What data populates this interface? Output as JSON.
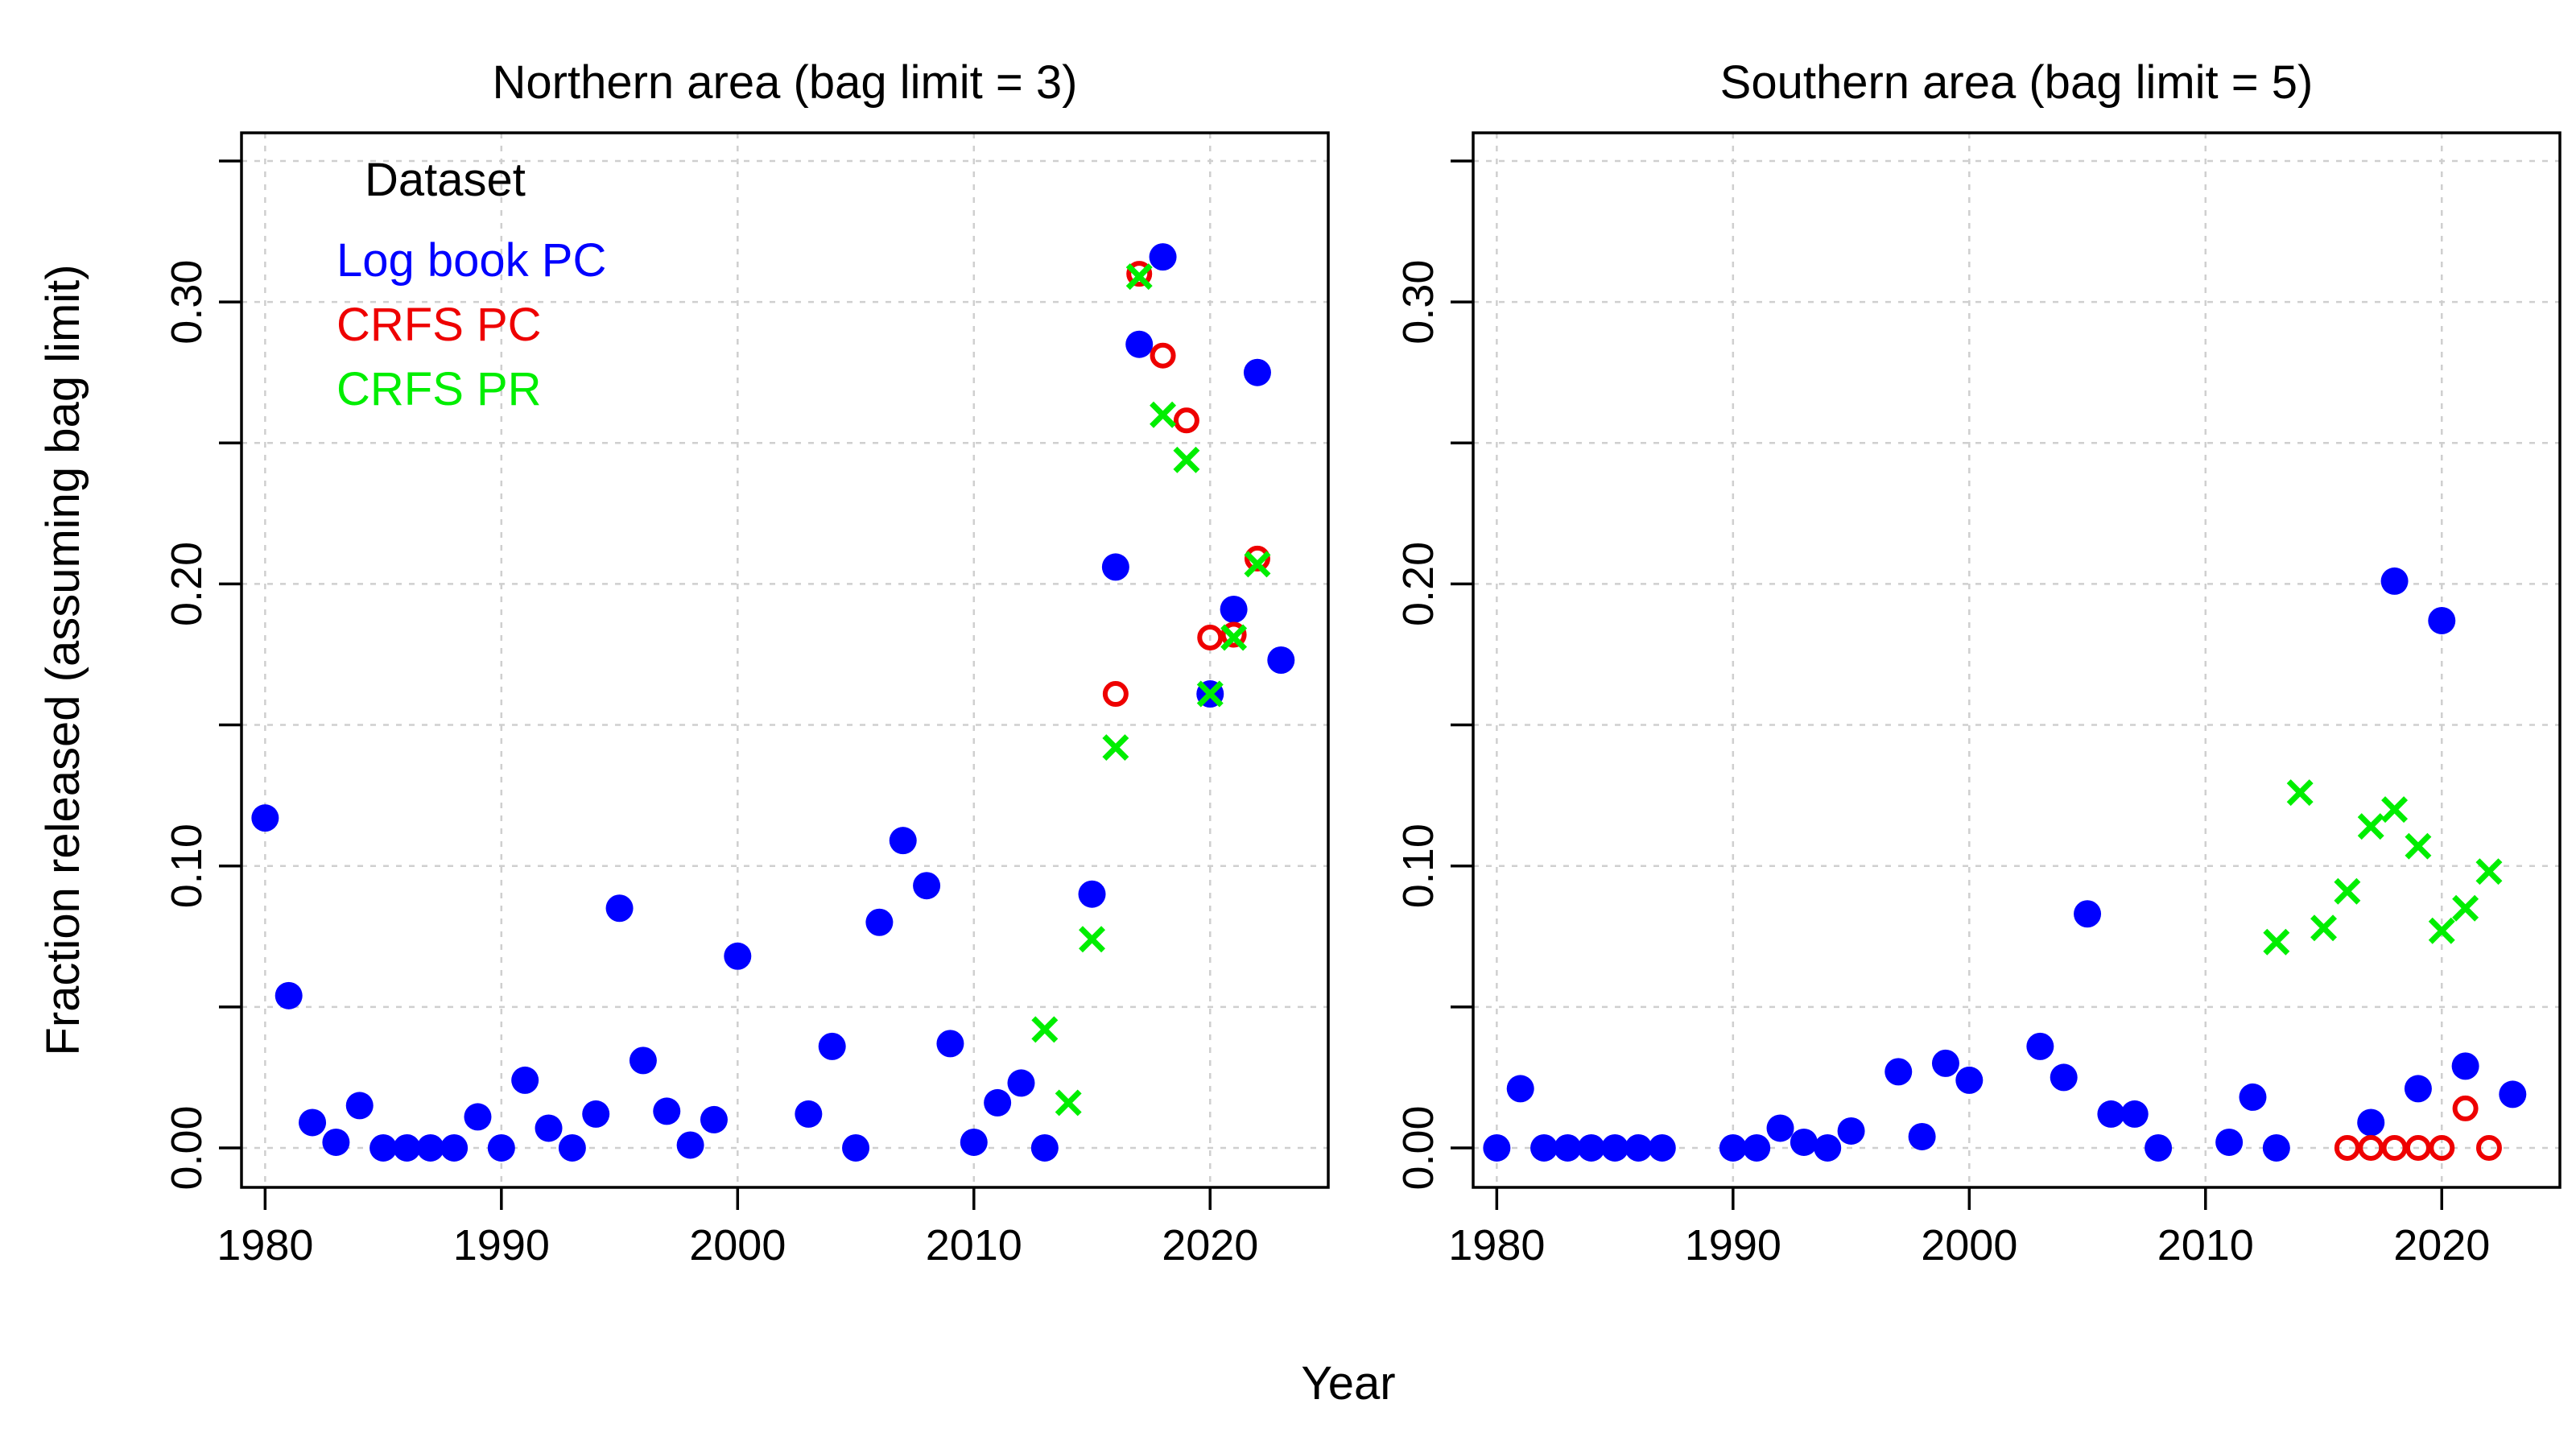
{
  "chart_data": [
    {
      "type": "scatter",
      "title": "Northern area (bag limit = 3)",
      "xlabel": "Year",
      "ylabel": "Fraction released (assuming bag limit)",
      "xlim": [
        1979,
        2025
      ],
      "ylim": [
        -0.014,
        0.36
      ],
      "x_ticks": [
        1980,
        1990,
        2000,
        2010,
        2020
      ],
      "x_tick_labels": [
        "1980",
        "1990",
        "2000",
        "2010",
        "2020"
      ],
      "y_ticks": [
        0.0,
        0.1,
        0.2,
        0.3
      ],
      "y_tick_labels": [
        "0.00",
        "0.10",
        "0.20",
        "0.30"
      ],
      "grid": true,
      "legend": {
        "title": "Dataset",
        "placement": "top-left",
        "entries": [
          {
            "label": "Log book PC",
            "color": "#0000ff"
          },
          {
            "label": "CRFS PC",
            "color": "#ee0000"
          },
          {
            "label": "CRFS PR",
            "color": "#00ee00"
          }
        ]
      },
      "series": [
        {
          "name": "Log book PC",
          "marker": "filled-circle",
          "color": "#0000ff",
          "points": [
            [
              1980,
              0.117
            ],
            [
              1981,
              0.054
            ],
            [
              1982,
              0.009
            ],
            [
              1983,
              0.002
            ],
            [
              1984,
              0.015
            ],
            [
              1985,
              0.0
            ],
            [
              1986,
              0.0
            ],
            [
              1987,
              0.0
            ],
            [
              1988,
              0.0
            ],
            [
              1989,
              0.011
            ],
            [
              1990,
              0.0
            ],
            [
              1991,
              0.024
            ],
            [
              1992,
              0.007
            ],
            [
              1993,
              0.0
            ],
            [
              1994,
              0.012
            ],
            [
              1995,
              0.085
            ],
            [
              1996,
              0.031
            ],
            [
              1997,
              0.013
            ],
            [
              1998,
              0.001
            ],
            [
              1999,
              0.01
            ],
            [
              2000,
              0.068
            ],
            [
              2003,
              0.012
            ],
            [
              2004,
              0.036
            ],
            [
              2005,
              0.0
            ],
            [
              2006,
              0.08
            ],
            [
              2007,
              0.109
            ],
            [
              2008,
              0.093
            ],
            [
              2009,
              0.037
            ],
            [
              2010,
              0.002
            ],
            [
              2011,
              0.016
            ],
            [
              2012,
              0.023
            ],
            [
              2013,
              0.0
            ],
            [
              2015,
              0.09
            ],
            [
              2016,
              0.206
            ],
            [
              2017,
              0.285
            ],
            [
              2018,
              0.316
            ],
            [
              2020,
              0.161
            ],
            [
              2021,
              0.191
            ],
            [
              2022,
              0.275
            ],
            [
              2023,
              0.173
            ]
          ]
        },
        {
          "name": "CRFS PC",
          "marker": "open-circle",
          "color": "#ee0000",
          "points": [
            [
              2016,
              0.161
            ],
            [
              2017,
              0.31
            ],
            [
              2018,
              0.281
            ],
            [
              2019,
              0.258
            ],
            [
              2020,
              0.181
            ],
            [
              2021,
              0.182
            ],
            [
              2022,
              0.209
            ]
          ]
        },
        {
          "name": "CRFS PR",
          "marker": "x",
          "color": "#00ee00",
          "points": [
            [
              2013,
              0.042
            ],
            [
              2014,
              0.016
            ],
            [
              2015,
              0.074
            ],
            [
              2016,
              0.142
            ],
            [
              2017,
              0.309
            ],
            [
              2018,
              0.26
            ],
            [
              2019,
              0.244
            ],
            [
              2020,
              0.161
            ],
            [
              2021,
              0.181
            ],
            [
              2022,
              0.207
            ]
          ]
        }
      ]
    },
    {
      "type": "scatter",
      "title": "Southern area (bag limit = 5)",
      "xlabel": "",
      "ylabel": "",
      "xlim": [
        1979,
        2025
      ],
      "ylim": [
        -0.014,
        0.36
      ],
      "x_ticks": [
        1980,
        1990,
        2000,
        2010,
        2020
      ],
      "x_tick_labels": [
        "1980",
        "1990",
        "2000",
        "2010",
        "2020"
      ],
      "y_ticks": [
        0.0,
        0.1,
        0.2,
        0.3
      ],
      "y_tick_labels": [
        "0.00",
        "0.10",
        "0.20",
        "0.30"
      ],
      "grid": true,
      "series": [
        {
          "name": "Log book PC",
          "marker": "filled-circle",
          "color": "#0000ff",
          "points": [
            [
              1980,
              0.0
            ],
            [
              1981,
              0.021
            ],
            [
              1982,
              0.0
            ],
            [
              1983,
              0.0
            ],
            [
              1984,
              0.0
            ],
            [
              1985,
              0.0
            ],
            [
              1986,
              0.0
            ],
            [
              1987,
              0.0
            ],
            [
              1990,
              0.0
            ],
            [
              1991,
              0.0
            ],
            [
              1992,
              0.007
            ],
            [
              1993,
              0.002
            ],
            [
              1994,
              0.0
            ],
            [
              1995,
              0.006
            ],
            [
              1997,
              0.027
            ],
            [
              1998,
              0.004
            ],
            [
              1999,
              0.03
            ],
            [
              2000,
              0.024
            ],
            [
              2003,
              0.036
            ],
            [
              2004,
              0.025
            ],
            [
              2005,
              0.083
            ],
            [
              2006,
              0.012
            ],
            [
              2007,
              0.012
            ],
            [
              2008,
              0.0
            ],
            [
              2011,
              0.002
            ],
            [
              2012,
              0.018
            ],
            [
              2013,
              0.0
            ],
            [
              2017,
              0.009
            ],
            [
              2018,
              0.201
            ],
            [
              2019,
              0.021
            ],
            [
              2020,
              0.187
            ],
            [
              2021,
              0.029
            ],
            [
              2023,
              0.019
            ]
          ]
        },
        {
          "name": "CRFS PC",
          "marker": "open-circle",
          "color": "#ee0000",
          "points": [
            [
              2016,
              0.0
            ],
            [
              2017,
              0.0
            ],
            [
              2018,
              0.0
            ],
            [
              2019,
              0.0
            ],
            [
              2020,
              0.0
            ],
            [
              2021,
              0.014
            ],
            [
              2022,
              0.0
            ]
          ]
        },
        {
          "name": "CRFS PR",
          "marker": "x",
          "color": "#00ee00",
          "points": [
            [
              2013,
              0.073
            ],
            [
              2014,
              0.126
            ],
            [
              2015,
              0.078
            ],
            [
              2016,
              0.091
            ],
            [
              2017,
              0.114
            ],
            [
              2018,
              0.12
            ],
            [
              2019,
              0.107
            ],
            [
              2020,
              0.077
            ],
            [
              2021,
              0.085
            ],
            [
              2022,
              0.098
            ]
          ]
        }
      ]
    }
  ]
}
